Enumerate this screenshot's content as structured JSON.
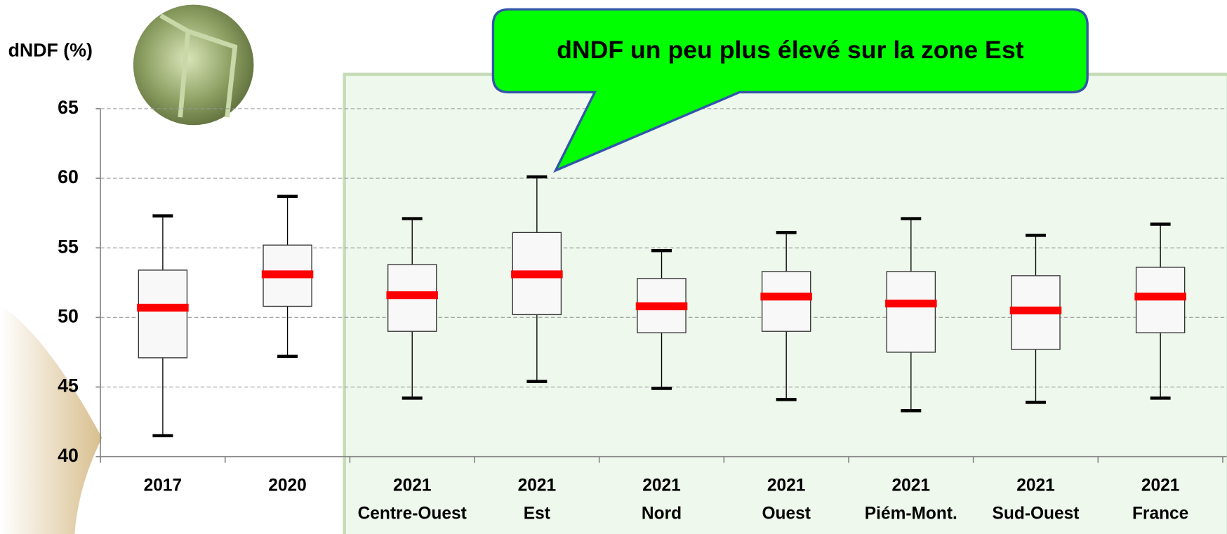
{
  "chart_data": {
    "type": "box",
    "y_label": "dNDF (%)",
    "annotation": "dNDF un peu plus élevé sur la zone Est",
    "categories": [
      [
        "2017"
      ],
      [
        "2020"
      ],
      [
        "2021",
        "Centre-Ouest"
      ],
      [
        "2021",
        "Est"
      ],
      [
        "2021",
        "Nord"
      ],
      [
        "2021",
        "Ouest"
      ],
      [
        "2021",
        "Piém-Mont."
      ],
      [
        "2021",
        "Sud-Ouest"
      ],
      [
        "2021",
        "France"
      ]
    ],
    "min": [
      41.5,
      47.2,
      44.2,
      45.4,
      44.9,
      44.1,
      43.3,
      43.9,
      44.2
    ],
    "q1": [
      47.1,
      50.8,
      49.0,
      50.2,
      48.9,
      49.0,
      47.5,
      47.7,
      48.9
    ],
    "median": [
      50.7,
      53.1,
      51.6,
      53.1,
      50.8,
      51.5,
      51.0,
      50.5,
      51.5
    ],
    "q3": [
      53.4,
      55.2,
      53.8,
      56.1,
      52.8,
      53.3,
      53.3,
      53.0,
      53.6
    ],
    "max": [
      57.3,
      58.7,
      57.1,
      60.1,
      54.8,
      56.1,
      57.1,
      55.9,
      56.7
    ],
    "box_color": "#f8f8f8",
    "median_color": "#ff0000",
    "ylim": [
      40,
      65
    ],
    "yticks": [
      40,
      45,
      50,
      55,
      60,
      65
    ],
    "grid": true
  }
}
